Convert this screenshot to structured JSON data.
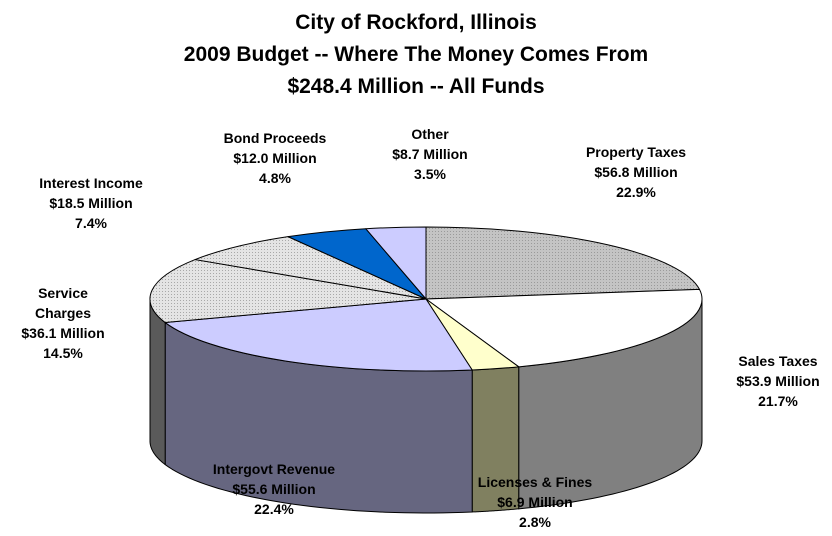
{
  "chart_data": {
    "type": "pie",
    "title_lines": [
      "City of Rockford, Illinois",
      "2009 Budget -- Where The Money Comes From",
      "$248.4 Million -- All Funds"
    ],
    "slices": [
      {
        "name": "Property Taxes",
        "amount": "$56.8 Million",
        "percent": "22.9%",
        "value": 56.8,
        "color": "#c8c8c8"
      },
      {
        "name": "Sales Taxes",
        "amount": "$53.9 Million",
        "percent": "21.7%",
        "value": 53.9,
        "color": "#ffffff"
      },
      {
        "name": "Licenses & Fines",
        "amount": "$6.9 Million",
        "percent": "2.8%",
        "value": 6.9,
        "color": "#ffffcc"
      },
      {
        "name": "Intergovt Revenue",
        "amount": "$55.6 Million",
        "percent": "22.4%",
        "value": 55.6,
        "color": "#ccccff"
      },
      {
        "name": "Service Charges",
        "amount": "$36.1 Million",
        "percent": "14.5%",
        "value": 36.1,
        "color": "#dcdcdc"
      },
      {
        "name": "Interest Income",
        "amount": "$18.5 Million",
        "percent": "7.4%",
        "value": 18.5,
        "color": "#e6e6e6"
      },
      {
        "name": "Bond Proceeds",
        "amount": "$12.0 Million",
        "percent": "4.8%",
        "value": 12.0,
        "color": "#0066cc"
      },
      {
        "name": "Other",
        "amount": "$8.7 Million",
        "percent": "3.5%",
        "value": 8.7,
        "color": "#ccccff"
      }
    ]
  }
}
